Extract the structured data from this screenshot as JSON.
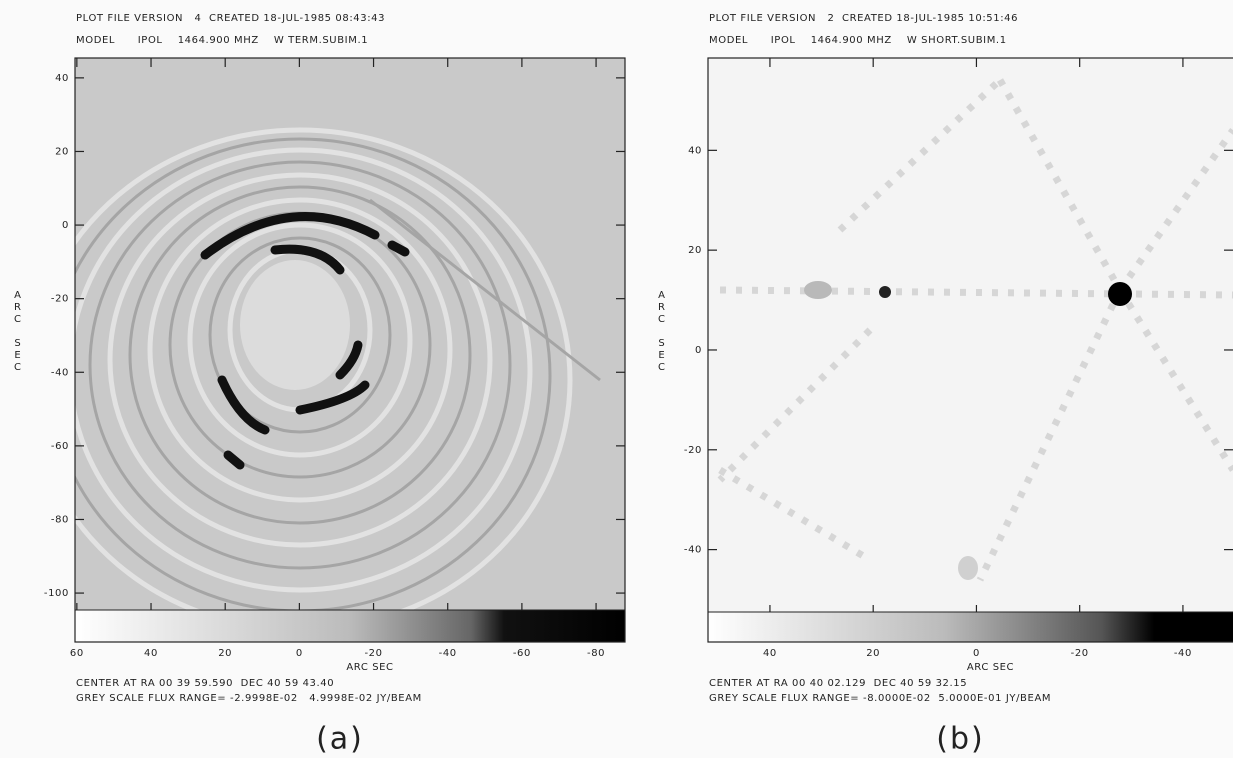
{
  "chart_data": [
    {
      "type": "image",
      "header": [
        "PLOT FILE VERSION   4  CREATED 18-JUL-1985 08:43:43",
        "MODEL      IPOL    1464.900 MHZ    W TERM.SUBIM.1"
      ],
      "xlabel": "ARC SEC",
      "ylabel": "ARC SEC",
      "footer": [
        "CENTER AT RA 00 39 59.590  DEC 40 59 43.40",
        "GREY SCALE FLUX RANGE= -2.9998E-02   4.9998E-02 JY/BEAM"
      ],
      "caption": "(a)",
      "xlim": [
        60.5,
        -87.8
      ],
      "ylim": [
        -104.6,
        45.4
      ],
      "xticks": [
        60,
        40,
        20,
        0,
        -20,
        -40,
        -60,
        -80
      ],
      "yticks": [
        40,
        20,
        0,
        -20,
        -40,
        -60,
        -80,
        -100
      ]
    },
    {
      "type": "image",
      "header": [
        "PLOT FILE VERSION   2  CREATED 18-JUL-1985 10:51:46",
        "MODEL      IPOL    1464.900 MHZ    W SHORT.SUBIM.1"
      ],
      "xlabel": "ARC SEC",
      "ylabel": "ARC SEC",
      "footer": [
        "CENTER AT RA 00 40 02.129  DEC 40 59 32.15",
        "GREY SCALE FLUX RANGE= -8.0000E-02  5.0000E-01 JY/BEAM"
      ],
      "caption": "(b)",
      "xlim": [
        52,
        -49.7
      ],
      "ylim": [
        -52.5,
        58.5
      ],
      "xticks": [
        40,
        20,
        0,
        -20,
        -40
      ],
      "yticks": [
        40,
        20,
        0,
        -20,
        -40
      ]
    }
  ]
}
